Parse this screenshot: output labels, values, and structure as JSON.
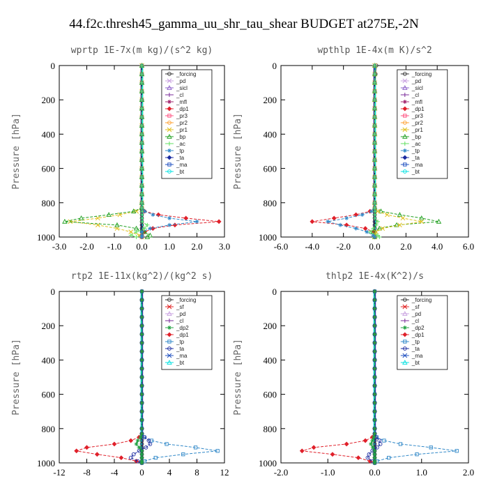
{
  "figure_title": "44.f2c.thresh45_gamma_uu_shr_tau_shear  BUDGET at275E,-2N",
  "colors": {
    "_forcing": "#333333",
    "_pd": "#c8a0e0",
    "_sicl": "#8a5cc8",
    "_cl": "#7a2a9a",
    "_mfl": "#a0206a",
    "_dp1": "#e0202a",
    "_pr3": "#ff5080",
    "_pr2": "#ffa030",
    "_pr1": "#e0c020",
    "_bp": "#20a020",
    "_ac": "#60e060",
    "_tp": "#3088c8",
    "_ta": "#1a2aa0",
    "_ma": "#2050c0",
    "_bt": "#00e0e0",
    "_sf": "#e02020",
    "_dp2": "#20a040"
  },
  "chart_data": [
    {
      "type": "line",
      "title": "wprtp   1E-7x(m kg)/(s^2 kg)",
      "ylabel": "Pressure  [hPa]",
      "xlim": [
        -3.0,
        3.0
      ],
      "ylim": [
        1000,
        0
      ],
      "xticks": [
        -3.0,
        -2.0,
        -1.0,
        0.0,
        1.0,
        2.0,
        3.0
      ],
      "xtick_labels": [
        "-3.0",
        "-2.0",
        "-1.0",
        "0.0",
        "1.0",
        "2.0",
        "3.0"
      ],
      "yticks": [
        0,
        200,
        400,
        600,
        800,
        1000
      ],
      "legend": [
        "_forcing",
        "_pd",
        "_sicl",
        "_cl",
        "_mfl",
        "_dp1",
        "_pr3",
        "_pr2",
        "_pr1",
        "_bp",
        "_ac",
        "_tp",
        "_ta",
        "_ma",
        "_bt"
      ],
      "pressure": [
        0,
        50,
        100,
        150,
        200,
        250,
        300,
        350,
        400,
        450,
        500,
        550,
        600,
        650,
        700,
        750,
        800,
        830,
        850,
        870,
        890,
        910,
        930,
        950,
        970,
        990,
        1000
      ],
      "series": [
        {
          "name": "_forcing",
          "values": [
            0,
            0,
            0,
            0,
            0,
            0,
            0,
            0,
            0,
            0,
            0,
            0,
            0,
            0,
            0,
            0,
            0,
            0,
            0,
            0,
            0,
            0,
            0,
            0,
            0,
            0,
            0
          ]
        },
        {
          "name": "_dp1",
          "values": [
            0,
            0,
            0,
            0,
            0,
            0,
            0,
            0,
            0,
            0,
            0,
            0,
            0,
            0,
            0,
            0,
            0,
            0,
            0.1,
            0.6,
            1.6,
            2.8,
            1.2,
            0.4,
            0.1,
            0,
            0
          ]
        },
        {
          "name": "_pr1",
          "values": [
            0,
            0,
            0,
            0,
            0,
            0,
            0,
            0,
            0,
            0,
            0,
            0,
            0,
            0,
            0,
            0,
            0,
            0,
            -0.2,
            -0.8,
            -1.6,
            -2.6,
            -1.6,
            -0.9,
            -0.4,
            -0.1,
            0
          ]
        },
        {
          "name": "_bp",
          "values": [
            0,
            0,
            0,
            0,
            0,
            0,
            0,
            0,
            0,
            0,
            0,
            0,
            0,
            0,
            0,
            0,
            0,
            0,
            -0.3,
            -1.2,
            -2.2,
            -2.8,
            -0.9,
            -0.2,
            0.1,
            0.3,
            0.2
          ]
        },
        {
          "name": "_tp",
          "values": [
            0,
            0,
            0,
            0,
            0,
            0,
            0,
            0,
            0,
            0,
            0,
            0,
            0,
            0,
            0,
            0,
            0,
            0,
            0.1,
            0.4,
            1.0,
            2.0,
            1.0,
            0.3,
            0,
            0,
            0
          ]
        },
        {
          "name": "_ac",
          "values": [
            0,
            0,
            0,
            0,
            0,
            0,
            0,
            0,
            0,
            0,
            0,
            0,
            0,
            0,
            0,
            0,
            0,
            0,
            0,
            0,
            0,
            0,
            0.2,
            0.1,
            -0.2,
            -0.4,
            -0.2
          ]
        }
      ]
    },
    {
      "type": "line",
      "title": "wpthlp   1E-4x(m K)/s^2",
      "ylabel": "Pressure  [hPa]",
      "xlim": [
        -6.0,
        6.0
      ],
      "ylim": [
        1000,
        0
      ],
      "xticks": [
        -6.0,
        -4.0,
        -2.0,
        0.0,
        2.0,
        4.0,
        6.0
      ],
      "xtick_labels": [
        "-6.0",
        "-4.0",
        "-2.0",
        "0.0",
        "2.0",
        "4.0",
        "6.0"
      ],
      "yticks": [
        0,
        200,
        400,
        600,
        800,
        1000
      ],
      "legend": [
        "_forcing",
        "_pd",
        "_sicl",
        "_cl",
        "_mfl",
        "_dp1",
        "_pr3",
        "_pr2",
        "_pr1",
        "_bp",
        "_ac",
        "_tp",
        "_ta",
        "_ma",
        "_bt"
      ],
      "pressure": [
        0,
        50,
        100,
        150,
        200,
        250,
        300,
        350,
        400,
        450,
        500,
        550,
        600,
        650,
        700,
        750,
        800,
        830,
        850,
        870,
        890,
        910,
        930,
        950,
        970,
        990,
        1000
      ],
      "series": [
        {
          "name": "_forcing",
          "values": [
            0.1,
            0.05,
            0,
            0,
            0,
            0,
            0,
            0,
            0,
            0,
            0,
            0,
            0,
            0,
            0,
            0,
            0,
            0,
            0,
            0,
            0,
            0,
            0,
            0,
            0,
            0,
            0
          ]
        },
        {
          "name": "_dp1",
          "values": [
            0,
            0,
            0,
            0,
            0,
            0,
            0,
            0,
            0,
            0,
            0,
            0,
            0,
            0,
            0,
            0,
            0,
            0,
            -0.3,
            -1.2,
            -2.6,
            -4.0,
            -1.8,
            -0.6,
            -0.1,
            0,
            0
          ]
        },
        {
          "name": "_bp",
          "values": [
            0,
            0,
            0,
            0,
            0,
            0,
            0,
            0,
            0,
            0,
            0,
            0,
            0,
            0,
            0,
            0,
            0,
            0,
            0.4,
            1.6,
            3.0,
            4.1,
            1.4,
            0.3,
            -0.1,
            0,
            0
          ]
        },
        {
          "name": "_pr1",
          "values": [
            0,
            0,
            0,
            0,
            0,
            0,
            0,
            0,
            0,
            0,
            0,
            0,
            0,
            0,
            0,
            0,
            0,
            0,
            0.2,
            0.8,
            1.8,
            3.0,
            1.6,
            0.5,
            0.1,
            0,
            0
          ]
        },
        {
          "name": "_tp",
          "values": [
            0,
            0,
            0,
            0,
            0,
            0,
            0,
            0,
            0,
            0,
            0,
            0,
            0,
            0,
            0,
            0,
            0,
            0,
            -0.2,
            -0.8,
            -1.8,
            -3.0,
            -2.2,
            -1.2,
            -0.5,
            -0.1,
            0
          ]
        },
        {
          "name": "_ac",
          "values": [
            0,
            0,
            0,
            0,
            0,
            0,
            0,
            0,
            0,
            0,
            0,
            0,
            0,
            0,
            0,
            0,
            0,
            0,
            0,
            0,
            0,
            0.2,
            0.1,
            -0.1,
            -0.3,
            0.2,
            0.3
          ]
        }
      ]
    },
    {
      "type": "line",
      "title": "rtp2   1E-11x(kg^2)/(kg^2 s)",
      "ylabel": "Pressure  [hPa]",
      "xlim": [
        -12,
        12
      ],
      "ylim": [
        1000,
        0
      ],
      "xticks": [
        -12,
        -8,
        -4,
        0,
        4,
        8,
        12
      ],
      "xtick_labels": [
        "-12",
        "-8",
        "-4",
        "0",
        "4",
        "8",
        "12"
      ],
      "yticks": [
        0,
        200,
        400,
        600,
        800,
        1000
      ],
      "legend": [
        "_forcing",
        "_sf",
        "_pd",
        "_cl",
        "_dp2",
        "_dp1",
        "_tp",
        "_ta",
        "_ma",
        "_bt"
      ],
      "pressure": [
        0,
        50,
        100,
        150,
        200,
        250,
        300,
        350,
        400,
        450,
        500,
        550,
        600,
        650,
        700,
        750,
        800,
        830,
        850,
        870,
        890,
        910,
        930,
        950,
        970,
        990,
        1000
      ],
      "series": [
        {
          "name": "_forcing",
          "values": [
            0,
            0,
            0,
            0,
            0,
            0,
            0,
            0,
            0,
            0,
            0,
            0,
            0,
            0,
            0,
            0,
            0,
            0,
            0,
            0,
            0,
            0,
            0,
            0,
            0,
            0,
            0
          ]
        },
        {
          "name": "_dp1",
          "values": [
            0,
            0,
            0,
            0,
            0,
            0,
            0,
            0,
            0,
            0,
            0,
            0,
            0,
            0,
            0,
            0,
            0,
            0,
            -0.4,
            -1.6,
            -4.0,
            -8.0,
            -9.5,
            -6.5,
            -3.0,
            -0.8,
            0
          ]
        },
        {
          "name": "_tp",
          "values": [
            0,
            0,
            0,
            0,
            0,
            0,
            0,
            0,
            0,
            0,
            0,
            0,
            0,
            0,
            0,
            0,
            0,
            0,
            0.3,
            1.4,
            3.6,
            7.8,
            11.0,
            6.0,
            2.0,
            0.4,
            0
          ]
        },
        {
          "name": "_ta",
          "values": [
            0,
            0,
            0,
            0,
            0,
            0,
            0,
            0,
            0,
            0,
            0,
            0,
            0,
            0,
            0,
            0,
            0,
            0,
            0.4,
            1.0,
            1.2,
            0.6,
            -0.4,
            -1.2,
            -1.6,
            -0.6,
            0
          ]
        },
        {
          "name": "_dp2",
          "values": [
            0,
            0,
            0,
            0,
            0,
            0,
            0,
            0,
            0,
            0,
            0,
            0,
            0,
            0,
            0,
            0,
            0,
            0,
            -0.2,
            -0.6,
            -0.8,
            -0.4,
            0,
            0,
            0,
            0,
            0
          ]
        }
      ]
    },
    {
      "type": "line",
      "title": "thlp2   1E-4x(K^2)/s",
      "ylabel": "Pressure  [hPa]",
      "xlim": [
        -2.0,
        2.0
      ],
      "ylim": [
        1000,
        0
      ],
      "xticks": [
        -2.0,
        -1.0,
        0.0,
        1.0,
        2.0
      ],
      "xtick_labels": [
        "-2.0",
        "-1.0",
        "0.0",
        "1.0",
        "2.0"
      ],
      "yticks": [
        0,
        200,
        400,
        600,
        800,
        1000
      ],
      "legend": [
        "_forcing",
        "_sf",
        "_pd",
        "_cl",
        "_dp2",
        "_dp1",
        "_tp",
        "_ta",
        "_ma",
        "_bt"
      ],
      "pressure": [
        0,
        50,
        100,
        150,
        200,
        250,
        300,
        350,
        400,
        450,
        500,
        550,
        600,
        650,
        700,
        750,
        800,
        830,
        850,
        870,
        890,
        910,
        930,
        950,
        970,
        990,
        1000
      ],
      "series": [
        {
          "name": "_forcing",
          "values": [
            0,
            0,
            0,
            0,
            0,
            0,
            0,
            0,
            0,
            0,
            0,
            0,
            0,
            0,
            0,
            0,
            0,
            0,
            0,
            0,
            0,
            0,
            0,
            0,
            0,
            0,
            0
          ]
        },
        {
          "name": "_dp1",
          "values": [
            0,
            0,
            0,
            0,
            0,
            0,
            0,
            0,
            0,
            0,
            0,
            0,
            0,
            0,
            0,
            0,
            0,
            0,
            -0.05,
            -0.2,
            -0.6,
            -1.3,
            -1.55,
            -0.9,
            -0.35,
            -0.1,
            0
          ]
        },
        {
          "name": "_tp",
          "values": [
            0,
            0,
            0,
            0,
            0,
            0,
            0,
            0,
            0,
            0,
            0,
            0,
            0,
            0,
            0,
            0,
            0,
            0,
            0.04,
            0.2,
            0.55,
            1.2,
            1.75,
            0.9,
            0.3,
            0.05,
            0
          ]
        },
        {
          "name": "_ta",
          "values": [
            0,
            0,
            0,
            0,
            0,
            0,
            0,
            0,
            0,
            0,
            0,
            0,
            0,
            0,
            0,
            0,
            0,
            0,
            0.03,
            0.1,
            0.12,
            0.05,
            -0.05,
            -0.12,
            -0.15,
            -0.05,
            0
          ]
        },
        {
          "name": "_dp2",
          "values": [
            0,
            0,
            0,
            0,
            0,
            0,
            0,
            0,
            0,
            0,
            0,
            0,
            0,
            0,
            0,
            0,
            0,
            0,
            -0.02,
            -0.05,
            -0.08,
            -0.04,
            0,
            0,
            0,
            0,
            0
          ]
        }
      ]
    }
  ]
}
